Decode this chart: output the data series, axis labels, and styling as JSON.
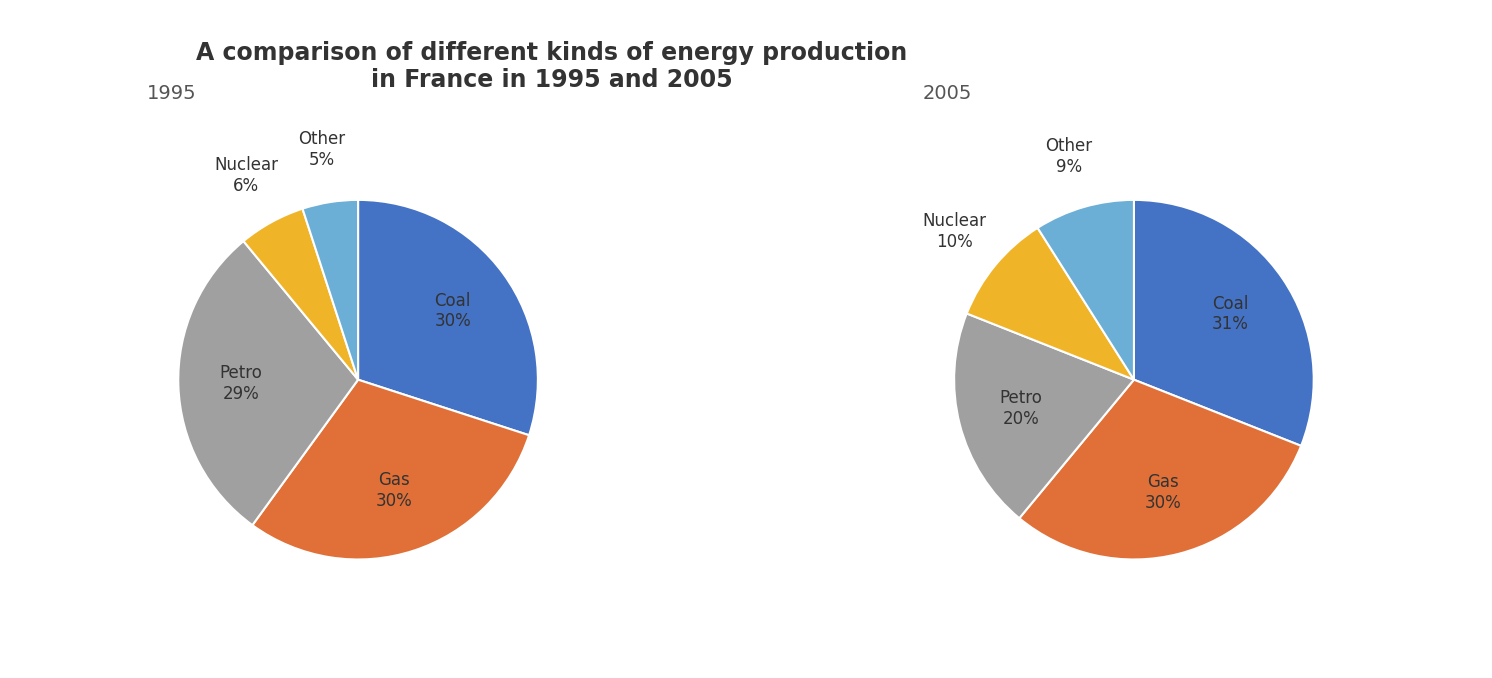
{
  "title": "A comparison of different kinds of energy production\nin France in 1995 and 2005",
  "title_fontsize": 17,
  "title_fontweight": "bold",
  "title_color": "#333333",
  "background_color": "#ffffff",
  "pie1_title": "1995",
  "pie1_values": [
    30,
    30,
    29,
    6,
    5
  ],
  "pie1_labels": [
    "Coal",
    "Gas",
    "Petro",
    "Nuclear",
    "Other"
  ],
  "pie1_colors": [
    "#4472c4",
    "#e07038",
    "#a0a0a0",
    "#f0b429",
    "#6baed6"
  ],
  "pie1_startangle": 90,
  "pie2_title": "2005",
  "pie2_values": [
    31,
    30,
    20,
    10,
    9
  ],
  "pie2_labels": [
    "Coal",
    "Gas",
    "Petro",
    "Nuclear",
    "Other"
  ],
  "pie2_colors": [
    "#4472c4",
    "#e07038",
    "#a0a0a0",
    "#f0b429",
    "#6baed6"
  ],
  "pie2_startangle": 90,
  "label_fontsize": 12,
  "pct_fontsize": 12,
  "subtitle_fontsize": 14,
  "subtitle_color": "#555555",
  "label_color": "#333333"
}
